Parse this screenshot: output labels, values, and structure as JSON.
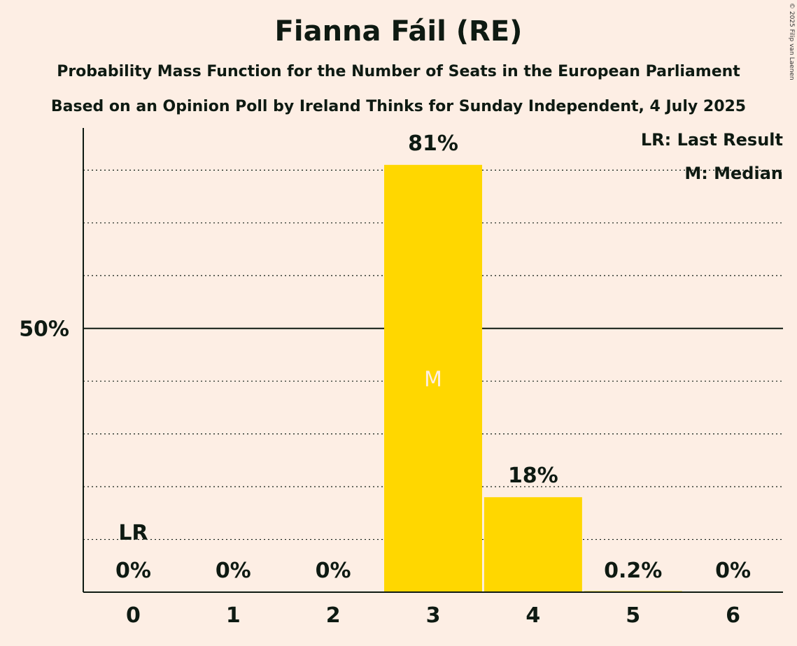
{
  "title": "Fianna Fáil (RE)",
  "subtitle": "Probability Mass Function for the Number of Seats in the European Parliament",
  "subtitle2": "Based on an Opinion Poll by Ireland Thinks for Sunday Independent, 4 July 2025",
  "copyright": "© 2025 Filip van Laenen",
  "legend": {
    "last_result": "LR: Last Result",
    "median": "M: Median"
  },
  "colors": {
    "background": "#FDEEE4",
    "bar": "#FFD700",
    "text": "#0E1A12"
  },
  "chart_data": {
    "type": "bar",
    "categories": [
      "0",
      "1",
      "2",
      "3",
      "4",
      "5",
      "6"
    ],
    "values": [
      0,
      0,
      0,
      81,
      18,
      0.2,
      0
    ],
    "data_labels": [
      "0%",
      "0%",
      "0%",
      "81%",
      "18%",
      "0.2%",
      "0%"
    ],
    "ylim": [
      0,
      88
    ],
    "yticks": [
      {
        "value": 50,
        "label": "50%"
      }
    ],
    "grid_dotted_values": [
      10,
      20,
      30,
      40,
      60,
      70,
      80
    ],
    "last_result": {
      "category": "0",
      "label": "LR"
    },
    "median": {
      "category": "3",
      "label": "M"
    }
  }
}
